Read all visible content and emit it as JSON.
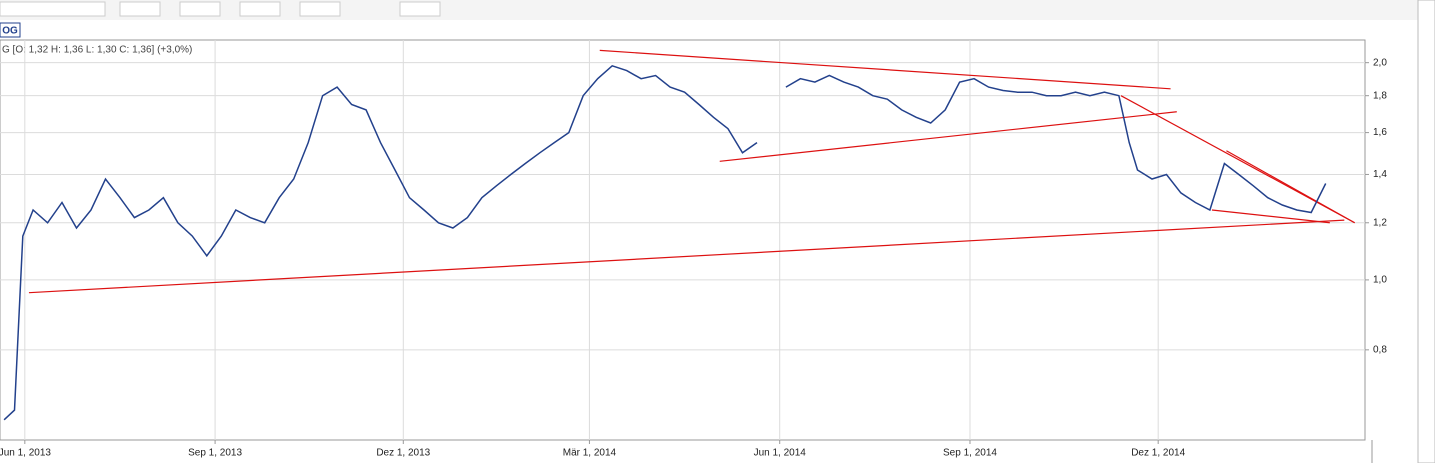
{
  "chart_data": {
    "type": "line",
    "tab_label": "OG",
    "header": "G [O: 1,32  H: 1,36  L: 1,30  C: 1,36] (+3,0%)",
    "log_scale": true,
    "grid": true,
    "xlim": [
      "2013-05-20",
      "2015-03-11"
    ],
    "ylim": [
      0.6,
      2.15
    ],
    "xticks": [
      {
        "value": "2013-06-01",
        "label": "Jun 1, 2013"
      },
      {
        "value": "2013-09-01",
        "label": "Sep 1, 2013"
      },
      {
        "value": "2013-12-01",
        "label": "Dez 1, 2013"
      },
      {
        "value": "2014-03-01",
        "label": "Mär 1, 2014"
      },
      {
        "value": "2014-06-01",
        "label": "Jun 1, 2014"
      },
      {
        "value": "2014-09-01",
        "label": "Sep 1, 2014"
      },
      {
        "value": "2014-12-01",
        "label": "Dez 1, 2014"
      }
    ],
    "yticks": [
      {
        "value": 0.8,
        "label": "0,8"
      },
      {
        "value": 1.0,
        "label": "1,0"
      },
      {
        "value": 1.2,
        "label": "1,2"
      },
      {
        "value": 1.4,
        "label": "1,4"
      },
      {
        "value": 1.6,
        "label": "1,6"
      },
      {
        "value": 1.8,
        "label": "1,8"
      },
      {
        "value": 2.0,
        "label": "2,0"
      }
    ],
    "x": [
      "2013-05-22",
      "2013-05-27",
      "2013-05-31",
      "2013-06-05",
      "2013-06-12",
      "2013-06-19",
      "2013-06-26",
      "2013-07-03",
      "2013-07-10",
      "2013-07-17",
      "2013-07-24",
      "2013-07-31",
      "2013-08-07",
      "2013-08-14",
      "2013-08-21",
      "2013-08-28",
      "2013-09-04",
      "2013-09-11",
      "2013-09-18",
      "2013-09-25",
      "2013-10-02",
      "2013-10-09",
      "2013-10-16",
      "2013-10-23",
      "2013-10-30",
      "2013-11-06",
      "2013-11-13",
      "2013-11-20",
      "2013-11-27",
      "2013-12-04",
      "2013-12-11",
      "2013-12-18",
      "2013-12-25",
      "2014-01-01",
      "2014-01-08",
      "2014-01-15",
      "2014-01-22",
      "2014-01-29",
      "2014-02-05",
      "2014-02-12",
      "2014-02-19",
      "2014-02-26",
      "2014-03-05",
      "2014-03-12",
      "2014-03-19",
      "2014-03-26",
      "2014-04-02",
      "2014-04-09",
      "2014-04-16",
      "2014-04-23",
      "2014-04-30",
      "2014-05-07",
      "2014-05-14",
      "2014-05-21",
      "2014-05-28",
      "2014-06-04",
      "2014-06-11",
      "2014-06-18",
      "2014-06-25",
      "2014-07-02",
      "2014-07-09",
      "2014-07-16",
      "2014-07-23",
      "2014-07-30",
      "2014-08-06",
      "2014-08-13",
      "2014-08-20",
      "2014-08-27",
      "2014-09-03",
      "2014-09-10",
      "2014-09-17",
      "2014-09-24",
      "2014-10-01",
      "2014-10-08",
      "2014-10-15",
      "2014-10-22",
      "2014-10-29",
      "2014-11-05",
      "2014-11-12",
      "2014-11-17",
      "2014-11-21",
      "2014-11-28",
      "2014-12-05",
      "2014-12-12",
      "2014-12-19",
      "2014-12-26",
      "2015-01-02",
      "2015-01-09",
      "2015-01-16",
      "2015-01-23",
      "2015-01-30",
      "2015-02-06",
      "2015-02-13",
      "2015-02-20"
    ],
    "series": [
      {
        "color": "#23418c",
        "values": [
          0.64,
          0.66,
          1.15,
          1.25,
          1.2,
          1.28,
          1.18,
          1.25,
          1.38,
          1.3,
          1.22,
          1.25,
          1.3,
          1.2,
          1.15,
          1.08,
          1.15,
          1.25,
          1.22,
          1.2,
          1.3,
          1.38,
          1.55,
          1.8,
          1.85,
          1.75,
          1.72,
          1.55,
          1.42,
          1.3,
          1.25,
          1.2,
          1.18,
          1.22,
          1.3,
          1.35,
          1.4,
          1.45,
          1.5,
          1.55,
          1.6,
          1.8,
          1.9,
          1.98,
          1.95,
          1.9,
          1.92,
          1.85,
          1.82,
          1.75,
          1.68,
          1.62,
          1.5,
          1.55,
          null,
          1.85,
          1.9,
          1.88,
          1.92,
          1.88,
          1.85,
          1.8,
          1.78,
          1.72,
          1.68,
          1.65,
          1.72,
          1.88,
          1.9,
          1.85,
          1.83,
          1.82,
          1.82,
          1.8,
          1.8,
          1.82,
          1.8,
          1.82,
          1.8,
          1.55,
          1.42,
          1.38,
          1.4,
          1.32,
          1.28,
          1.25,
          1.45,
          1.4,
          1.35,
          1.3,
          1.27,
          1.25,
          1.24,
          1.36
        ]
      }
    ],
    "trendline_color": "#dd1111",
    "trendlines": [
      {
        "x": [
          "2013-06-03",
          "2015-03-01"
        ],
        "values": [
          0.96,
          1.21
        ]
      },
      {
        "x": [
          "2014-03-06",
          "2014-12-07"
        ],
        "values": [
          2.08,
          1.84
        ]
      },
      {
        "x": [
          "2014-05-03",
          "2014-12-10"
        ],
        "values": [
          1.46,
          1.71
        ]
      },
      {
        "x": [
          "2014-11-13",
          "2015-03-06"
        ],
        "values": [
          1.8,
          1.2
        ]
      },
      {
        "x": [
          "2014-12-27",
          "2015-02-22"
        ],
        "values": [
          1.25,
          1.2
        ]
      },
      {
        "x": [
          "2015-01-03",
          "2015-03-06"
        ],
        "values": [
          1.51,
          1.2
        ]
      }
    ]
  }
}
